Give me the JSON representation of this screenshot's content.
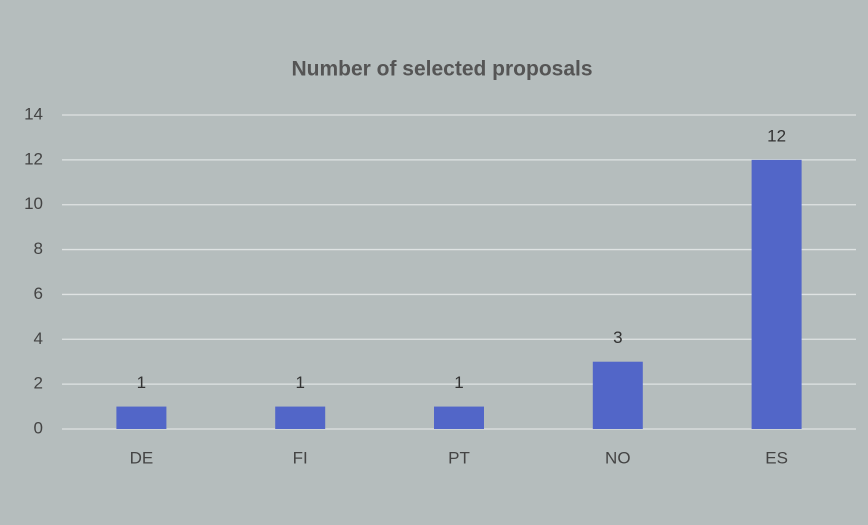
{
  "chart_data": {
    "type": "bar",
    "title": "Number of selected proposals",
    "categories": [
      "DE",
      "FI",
      "PT",
      "NO",
      "ES"
    ],
    "values": [
      1,
      1,
      1,
      3,
      12
    ],
    "color": "#5266c8",
    "ylim": [
      0,
      14
    ],
    "yticks": [
      0,
      2,
      4,
      6,
      8,
      10,
      12,
      14
    ],
    "grid": true,
    "data_labels": true
  }
}
